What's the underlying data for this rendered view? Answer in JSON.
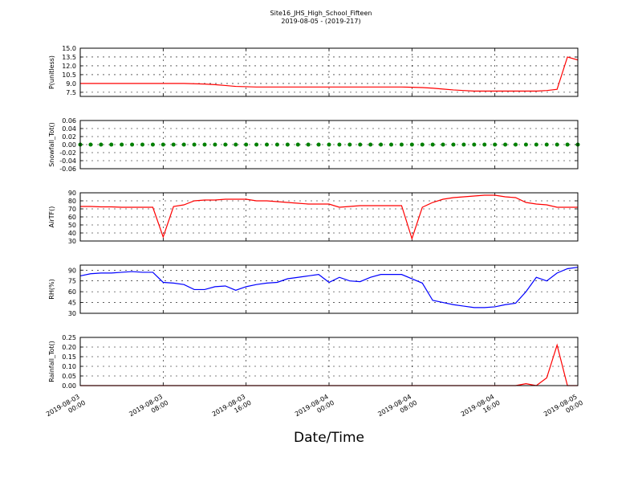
{
  "chart_data": [
    {
      "type": "line",
      "title": "Site16_JHS_High_School_Fifteen",
      "subtitle": "2019-08-05 - (2019-217)",
      "ylabel": "P(unitless)",
      "ylim": [
        6.8,
        15
      ],
      "yticks": [
        {
          "value": 15,
          "label": "15.0"
        },
        13.5,
        {
          "value": 12,
          "label": "12.0"
        },
        10.5,
        {
          "value": 9,
          "label": "9.0"
        },
        7.5
      ],
      "grid": true,
      "series": [
        {
          "color": "#ff0000",
          "values": [
            9.0,
            9.0,
            9.0,
            9.0,
            9.0,
            9.0,
            9.0,
            9.0,
            9.0,
            9.0,
            9.0,
            8.95,
            8.9,
            8.8,
            8.65,
            8.5,
            8.45,
            8.4,
            8.4,
            8.4,
            8.4,
            8.4,
            8.4,
            8.4,
            8.4,
            8.4,
            8.4,
            8.4,
            8.4,
            8.4,
            8.4,
            8.4,
            8.35,
            8.3,
            8.2,
            8.05,
            7.9,
            7.8,
            7.7,
            7.7,
            7.7,
            7.7,
            7.7,
            7.7,
            7.7,
            7.8,
            8.0,
            13.5,
            13.0
          ]
        }
      ]
    },
    {
      "type": "line",
      "ylabel": "Snowfall_Tot()",
      "markers": true,
      "ylim": [
        -0.06,
        0.06
      ],
      "yticks": [
        0.06,
        0.04,
        0.02,
        {
          "value": 0,
          "label": "0.00"
        },
        -0.02,
        -0.04,
        -0.06
      ],
      "grid": true,
      "series": [
        {
          "color": "#008000",
          "values": [
            0,
            0,
            0,
            0,
            0,
            0,
            0,
            0,
            0,
            0,
            0,
            0,
            0,
            0,
            0,
            0,
            0,
            0,
            0,
            0,
            0,
            0,
            0,
            0,
            0,
            0,
            0,
            0,
            0,
            0,
            0,
            0,
            0,
            0,
            0,
            0,
            0,
            0,
            0,
            0,
            0,
            0,
            0,
            0,
            0,
            0,
            0,
            0,
            0
          ]
        }
      ]
    },
    {
      "type": "line",
      "ylabel": "AirTF()",
      "ylim": [
        30,
        90
      ],
      "yticks": [
        90,
        80,
        70,
        60,
        50,
        40,
        30
      ],
      "grid": true,
      "series": [
        {
          "color": "#ff0000",
          "values": [
            73,
            73,
            72.5,
            72.5,
            72,
            72,
            72,
            72,
            35,
            73,
            75,
            80,
            81,
            81,
            82,
            82,
            82,
            80,
            80,
            79,
            78,
            77,
            76,
            76,
            76,
            72,
            73,
            74,
            74,
            74,
            74,
            74,
            33,
            72,
            78,
            82,
            84,
            85,
            86,
            87,
            87,
            85,
            84,
            78,
            76,
            75,
            72,
            72,
            72
          ]
        }
      ]
    },
    {
      "type": "line",
      "ylabel": "RH(%)",
      "ylim": [
        30,
        97
      ],
      "yticks": [
        90,
        75,
        60,
        45,
        30
      ],
      "grid": true,
      "series": [
        {
          "color": "#0000ff",
          "values": [
            82,
            85,
            86,
            86,
            87,
            88,
            87,
            87,
            73,
            72,
            70,
            63,
            63,
            67,
            68,
            62,
            67,
            70,
            72,
            73,
            78,
            80,
            82,
            84,
            73,
            80,
            75,
            74,
            80,
            84,
            84,
            84,
            78,
            72,
            48,
            45,
            42,
            40,
            38,
            38,
            39,
            42,
            44,
            60,
            80,
            75,
            86,
            92,
            94
          ]
        }
      ]
    },
    {
      "type": "line",
      "ylabel": "Rainfall_Tot()",
      "xlabel": "Date/Time",
      "ylim": [
        0,
        0.25
      ],
      "yticks": [
        0.25,
        {
          "value": 0.2,
          "label": "0.20"
        },
        0.15,
        {
          "value": 0.1,
          "label": "0.10"
        },
        0.05,
        {
          "value": 0,
          "label": "0.00"
        }
      ],
      "grid": true,
      "x": [
        "2019-08-03 00:00",
        "2019-08-03 01:00",
        "2019-08-03 02:00",
        "2019-08-03 03:00",
        "2019-08-03 04:00",
        "2019-08-03 05:00",
        "2019-08-03 06:00",
        "2019-08-03 07:00",
        "2019-08-03 08:00",
        "2019-08-03 09:00",
        "2019-08-03 10:00",
        "2019-08-03 11:00",
        "2019-08-03 12:00",
        "2019-08-03 13:00",
        "2019-08-03 14:00",
        "2019-08-03 15:00",
        "2019-08-03 16:00",
        "2019-08-03 17:00",
        "2019-08-03 18:00",
        "2019-08-03 19:00",
        "2019-08-03 20:00",
        "2019-08-03 21:00",
        "2019-08-03 22:00",
        "2019-08-03 23:00",
        "2019-08-04 00:00",
        "2019-08-04 01:00",
        "2019-08-04 02:00",
        "2019-08-04 03:00",
        "2019-08-04 04:00",
        "2019-08-04 05:00",
        "2019-08-04 06:00",
        "2019-08-04 07:00",
        "2019-08-04 08:00",
        "2019-08-04 09:00",
        "2019-08-04 10:00",
        "2019-08-04 11:00",
        "2019-08-04 12:00",
        "2019-08-04 13:00",
        "2019-08-04 14:00",
        "2019-08-04 15:00",
        "2019-08-04 16:00",
        "2019-08-04 17:00",
        "2019-08-04 18:00",
        "2019-08-04 19:00",
        "2019-08-04 20:00",
        "2019-08-04 21:00",
        "2019-08-04 22:00",
        "2019-08-04 23:00",
        "2019-08-05 00:00"
      ],
      "xlim": [
        "2019-08-03 00:00",
        "2019-08-05 00:00"
      ],
      "xticks": [
        "2019-08-03 00:00",
        "2019-08-03 08:00",
        "2019-08-03 16:00",
        "2019-08-04 00:00",
        "2019-08-04 08:00",
        "2019-08-04 16:00",
        "2019-08-05 00:00"
      ],
      "series": [
        {
          "color": "#ff0000",
          "values": [
            0,
            0,
            0,
            0,
            0,
            0,
            0,
            0,
            0,
            0,
            0,
            0,
            0,
            0,
            0,
            0,
            0,
            0,
            0,
            0,
            0,
            0,
            0,
            0,
            0,
            0,
            0,
            0,
            0,
            0,
            0,
            0,
            0,
            0,
            0,
            0,
            0,
            0,
            0,
            0,
            0,
            0,
            0,
            0.01,
            0,
            0.04,
            0.21,
            0,
            0
          ]
        }
      ]
    }
  ]
}
